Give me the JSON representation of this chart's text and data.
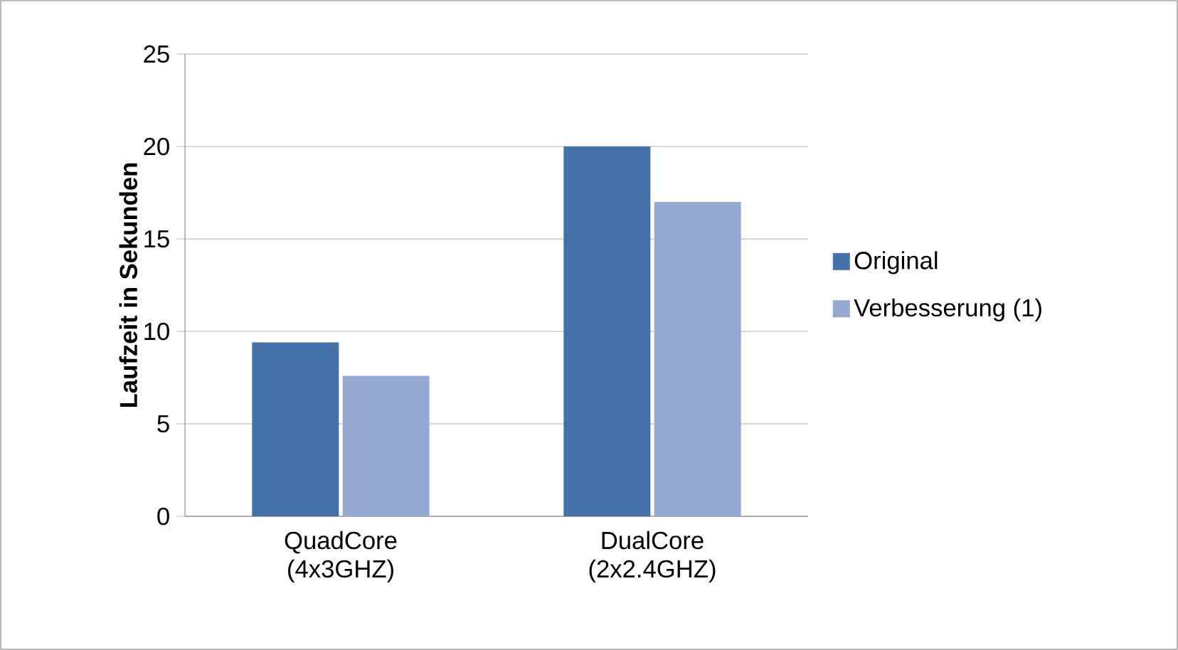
{
  "chart_data": {
    "type": "bar",
    "ylabel": "Laufzeit in Sekunden",
    "categories": [
      "QuadCore (4x3GHZ)",
      "DualCore (2x2.4GHZ)"
    ],
    "series": [
      {
        "name": "Original",
        "color": "#4472a8",
        "values": [
          9.4,
          20
        ]
      },
      {
        "name": "Verbesserung (1)",
        "color": "#95aad3",
        "values": [
          7.6,
          17
        ]
      }
    ],
    "ylim": [
      0,
      25
    ],
    "yticks": [
      0,
      5,
      10,
      15,
      20,
      25
    ],
    "grid": "y",
    "legend": "right"
  }
}
